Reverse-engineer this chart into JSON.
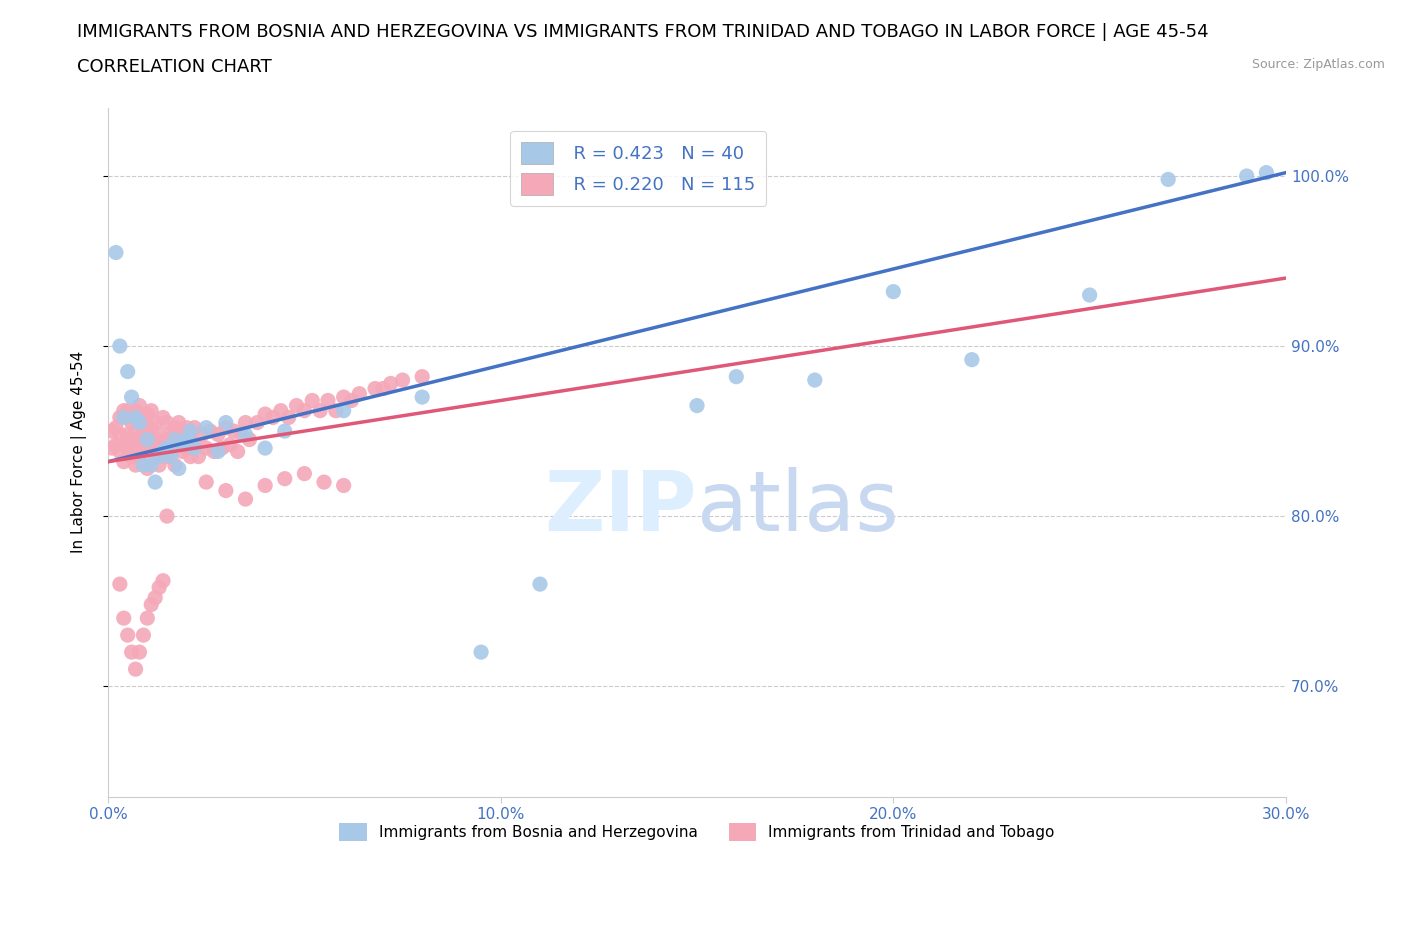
{
  "title_line1": "IMMIGRANTS FROM BOSNIA AND HERZEGOVINA VS IMMIGRANTS FROM TRINIDAD AND TOBAGO IN LABOR FORCE | AGE 45-54",
  "title_line2": "CORRELATION CHART",
  "source_text": "Source: ZipAtlas.com",
  "ylabel": "In Labor Force | Age 45-54",
  "blue_label": "Immigrants from Bosnia and Herzegovina",
  "pink_label": "Immigrants from Trinidad and Tobago",
  "blue_R": 0.423,
  "blue_N": 40,
  "pink_R": 0.22,
  "pink_N": 115,
  "blue_color": "#a8c8e8",
  "pink_color": "#f4a8b8",
  "blue_line_color": "#4472c4",
  "pink_line_color": "#e05878",
  "axis_color": "#4472c4",
  "xmin": 0.0,
  "xmax": 0.3,
  "ymin": 0.635,
  "ymax": 1.04,
  "yticks": [
    0.7,
    0.8,
    0.9,
    1.0
  ],
  "ytick_labels": [
    "70.0%",
    "80.0%",
    "90.0%",
    "100.0%"
  ],
  "xticks": [
    0.0,
    0.1,
    0.2,
    0.3
  ],
  "xtick_labels": [
    "0.0%",
    "10.0%",
    "20.0%",
    "30.0%"
  ],
  "blue_line_x0": 0.0,
  "blue_line_y0": 0.832,
  "blue_line_x1": 0.3,
  "blue_line_y1": 1.002,
  "pink_line_x0": 0.0,
  "pink_line_y0": 0.832,
  "pink_line_x1": 0.3,
  "pink_line_y1": 0.94,
  "blue_scatter_x": [
    0.002,
    0.003,
    0.004,
    0.005,
    0.006,
    0.007,
    0.008,
    0.009,
    0.01,
    0.011,
    0.012,
    0.013,
    0.014,
    0.015,
    0.016,
    0.017,
    0.018,
    0.019,
    0.02,
    0.021,
    0.022,
    0.025,
    0.028,
    0.03,
    0.035,
    0.04,
    0.045,
    0.06,
    0.08,
    0.095,
    0.11,
    0.15,
    0.16,
    0.18,
    0.2,
    0.22,
    0.25,
    0.27,
    0.29,
    0.295
  ],
  "blue_scatter_y": [
    0.955,
    0.9,
    0.858,
    0.885,
    0.87,
    0.858,
    0.855,
    0.83,
    0.845,
    0.83,
    0.82,
    0.835,
    0.838,
    0.84,
    0.835,
    0.845,
    0.828,
    0.842,
    0.845,
    0.85,
    0.84,
    0.852,
    0.838,
    0.855,
    0.848,
    0.84,
    0.85,
    0.862,
    0.87,
    0.72,
    0.76,
    0.865,
    0.882,
    0.88,
    0.932,
    0.892,
    0.93,
    0.998,
    1.0,
    1.002
  ],
  "pink_scatter_x": [
    0.001,
    0.001,
    0.002,
    0.002,
    0.003,
    0.003,
    0.003,
    0.004,
    0.004,
    0.004,
    0.005,
    0.005,
    0.005,
    0.005,
    0.006,
    0.006,
    0.006,
    0.007,
    0.007,
    0.007,
    0.007,
    0.008,
    0.008,
    0.008,
    0.008,
    0.009,
    0.009,
    0.009,
    0.009,
    0.01,
    0.01,
    0.01,
    0.01,
    0.011,
    0.011,
    0.011,
    0.012,
    0.012,
    0.012,
    0.013,
    0.013,
    0.013,
    0.014,
    0.014,
    0.015,
    0.015,
    0.015,
    0.016,
    0.016,
    0.017,
    0.017,
    0.018,
    0.018,
    0.019,
    0.019,
    0.02,
    0.02,
    0.021,
    0.021,
    0.022,
    0.022,
    0.023,
    0.024,
    0.025,
    0.026,
    0.027,
    0.028,
    0.029,
    0.03,
    0.031,
    0.032,
    0.033,
    0.034,
    0.035,
    0.036,
    0.038,
    0.04,
    0.042,
    0.044,
    0.046,
    0.048,
    0.05,
    0.052,
    0.054,
    0.056,
    0.058,
    0.06,
    0.062,
    0.064,
    0.068,
    0.07,
    0.072,
    0.075,
    0.08,
    0.015,
    0.025,
    0.03,
    0.035,
    0.04,
    0.045,
    0.05,
    0.055,
    0.06,
    0.003,
    0.004,
    0.005,
    0.006,
    0.007,
    0.008,
    0.009,
    0.01,
    0.011,
    0.012,
    0.013,
    0.014
  ],
  "pink_scatter_y": [
    0.85,
    0.84,
    0.852,
    0.842,
    0.848,
    0.838,
    0.858,
    0.842,
    0.832,
    0.862,
    0.84,
    0.848,
    0.858,
    0.862,
    0.845,
    0.835,
    0.855,
    0.84,
    0.85,
    0.83,
    0.862,
    0.835,
    0.845,
    0.855,
    0.865,
    0.838,
    0.848,
    0.858,
    0.83,
    0.84,
    0.85,
    0.86,
    0.828,
    0.842,
    0.852,
    0.862,
    0.835,
    0.845,
    0.855,
    0.838,
    0.848,
    0.83,
    0.858,
    0.84,
    0.845,
    0.855,
    0.835,
    0.848,
    0.838,
    0.852,
    0.83,
    0.845,
    0.855,
    0.838,
    0.848,
    0.84,
    0.852,
    0.835,
    0.845,
    0.842,
    0.852,
    0.835,
    0.848,
    0.84,
    0.85,
    0.838,
    0.848,
    0.84,
    0.852,
    0.842,
    0.85,
    0.838,
    0.848,
    0.855,
    0.845,
    0.855,
    0.86,
    0.858,
    0.862,
    0.858,
    0.865,
    0.862,
    0.868,
    0.862,
    0.868,
    0.862,
    0.87,
    0.868,
    0.872,
    0.875,
    0.875,
    0.878,
    0.88,
    0.882,
    0.8,
    0.82,
    0.815,
    0.81,
    0.818,
    0.822,
    0.825,
    0.82,
    0.818,
    0.76,
    0.74,
    0.73,
    0.72,
    0.71,
    0.72,
    0.73,
    0.74,
    0.748,
    0.752,
    0.758,
    0.762
  ],
  "grid_color": "#cccccc",
  "title_fontsize": 13,
  "axis_label_fontsize": 11,
  "tick_fontsize": 11,
  "legend_fontsize": 13
}
